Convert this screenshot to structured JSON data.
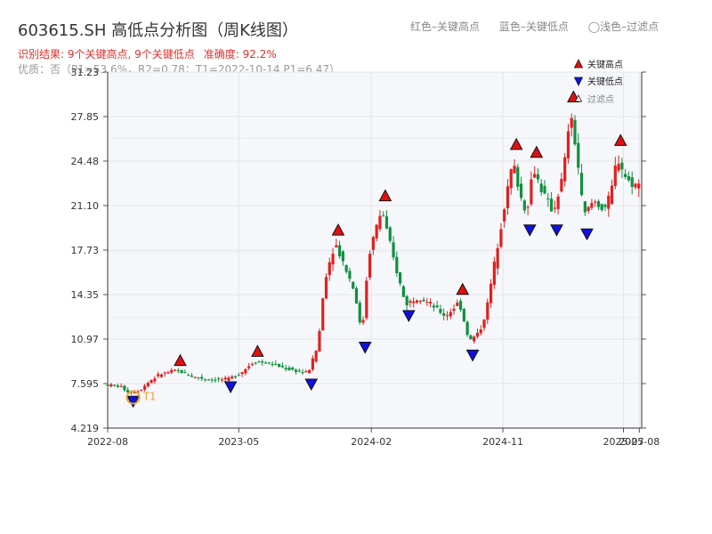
{
  "header": {
    "title": "603615.SH 高低点分析图（周K线图）",
    "legend_high": "红色–关键高点",
    "legend_low": "蓝色–关键低点",
    "legend_filter": "◯浅色–过滤点",
    "result": "识别结果: 9个关键高点, 9个关键低点",
    "accuracy": "准确度: 92.2%",
    "quality": "优质：否（P1=53.6%，R2=0.78；T1=2022-10-14 P1=6.47）"
  },
  "chart_data": {
    "type": "candlestick",
    "title": "603615.SH 高低点分析图（周K线图）",
    "y_ticks": [
      "4.219",
      "7.595",
      "10.97",
      "14.35",
      "17.73",
      "21.10",
      "24.48",
      "27.85",
      "31.23"
    ],
    "ylim": [
      4.219,
      31.23
    ],
    "x_ticks": [
      "2022-08",
      "2023-05",
      "2024-02",
      "2024-11",
      "2025-07",
      "2025-08"
    ],
    "grid": true,
    "legend_position": "top-right",
    "legend": [
      "关键高点",
      "关键低点",
      "过滤点"
    ],
    "annotations": [
      "T1"
    ],
    "key_highs": [
      {
        "date": "2022-12-30",
        "price": 8.9
      },
      {
        "date": "2023-06-09",
        "price": 9.6
      },
      {
        "date": "2023-11-24",
        "price": 18.8
      },
      {
        "date": "2024-03-01",
        "price": 21.4
      },
      {
        "date": "2024-08-09",
        "price": 14.3
      },
      {
        "date": "2024-11-29",
        "price": 25.3
      },
      {
        "date": "2025-01-10",
        "price": 24.7
      },
      {
        "date": "2025-03-28",
        "price": 28.9
      },
      {
        "date": "2025-07-04",
        "price": 25.6
      }
    ],
    "key_lows": [
      {
        "date": "2022-09-23",
        "price": 6.7
      },
      {
        "date": "2023-04-14",
        "price": 7.8
      },
      {
        "date": "2023-09-29",
        "price": 8.0
      },
      {
        "date": "2024-01-19",
        "price": 10.8
      },
      {
        "date": "2024-04-19",
        "price": 13.2
      },
      {
        "date": "2024-08-30",
        "price": 10.2
      },
      {
        "date": "2024-12-27",
        "price": 19.7
      },
      {
        "date": "2025-02-21",
        "price": 19.7
      },
      {
        "date": "2025-04-25",
        "price": 19.4
      }
    ],
    "price_path": [
      [
        "2022-08-01",
        7.5
      ],
      [
        "2022-09-02",
        7.4
      ],
      [
        "2022-09-23",
        6.9
      ],
      [
        "2022-10-14",
        7.1
      ],
      [
        "2022-11-04",
        7.8
      ],
      [
        "2022-11-25",
        8.3
      ],
      [
        "2022-12-30",
        8.6
      ],
      [
        "2023-02-03",
        8.1
      ],
      [
        "2023-03-10",
        7.9
      ],
      [
        "2023-04-14",
        7.9
      ],
      [
        "2023-05-12",
        8.4
      ],
      [
        "2023-06-09",
        9.3
      ],
      [
        "2023-07-14",
        9.1
      ],
      [
        "2023-08-18",
        8.7
      ],
      [
        "2023-09-29",
        8.4
      ],
      [
        "2023-10-20",
        10.5
      ],
      [
        "2023-11-03",
        15.5
      ],
      [
        "2023-11-24",
        18.3
      ],
      [
        "2023-12-15",
        16.5
      ],
      [
        "2024-01-05",
        14.5
      ],
      [
        "2024-01-19",
        11.2
      ],
      [
        "2024-02-02",
        17.2
      ],
      [
        "2024-02-16",
        19.2
      ],
      [
        "2024-03-01",
        20.8
      ],
      [
        "2024-03-22",
        17.5
      ],
      [
        "2024-04-19",
        13.6
      ],
      [
        "2024-05-17",
        14.2
      ],
      [
        "2024-06-14",
        13.5
      ],
      [
        "2024-07-12",
        12.7
      ],
      [
        "2024-08-09",
        13.8
      ],
      [
        "2024-08-30",
        10.8
      ],
      [
        "2024-09-20",
        11.5
      ],
      [
        "2024-10-04",
        13.0
      ],
      [
        "2024-10-25",
        17.5
      ],
      [
        "2024-11-08",
        20.5
      ],
      [
        "2024-11-29",
        24.5
      ],
      [
        "2024-12-13",
        22.0
      ],
      [
        "2024-12-27",
        20.5
      ],
      [
        "2025-01-10",
        24.0
      ],
      [
        "2025-01-31",
        22.0
      ],
      [
        "2025-02-21",
        20.6
      ],
      [
        "2025-03-14",
        23.5
      ],
      [
        "2025-03-28",
        28.2
      ],
      [
        "2025-04-11",
        25.0
      ],
      [
        "2025-04-25",
        20.3
      ],
      [
        "2025-05-16",
        21.5
      ],
      [
        "2025-06-06",
        20.8
      ],
      [
        "2025-06-20",
        21.8
      ],
      [
        "2025-07-04",
        24.8
      ],
      [
        "2025-07-25",
        23.0
      ],
      [
        "2025-08-15",
        22.6
      ]
    ]
  },
  "style": {
    "up_color": "#e02020",
    "down_color": "#109040",
    "high_marker_color": "#e01010",
    "low_marker_color": "#1010e0",
    "filter_ring_color": "#f0a030",
    "plot_background": "#f5f7fa",
    "grid_color": "#e3e6ea"
  }
}
